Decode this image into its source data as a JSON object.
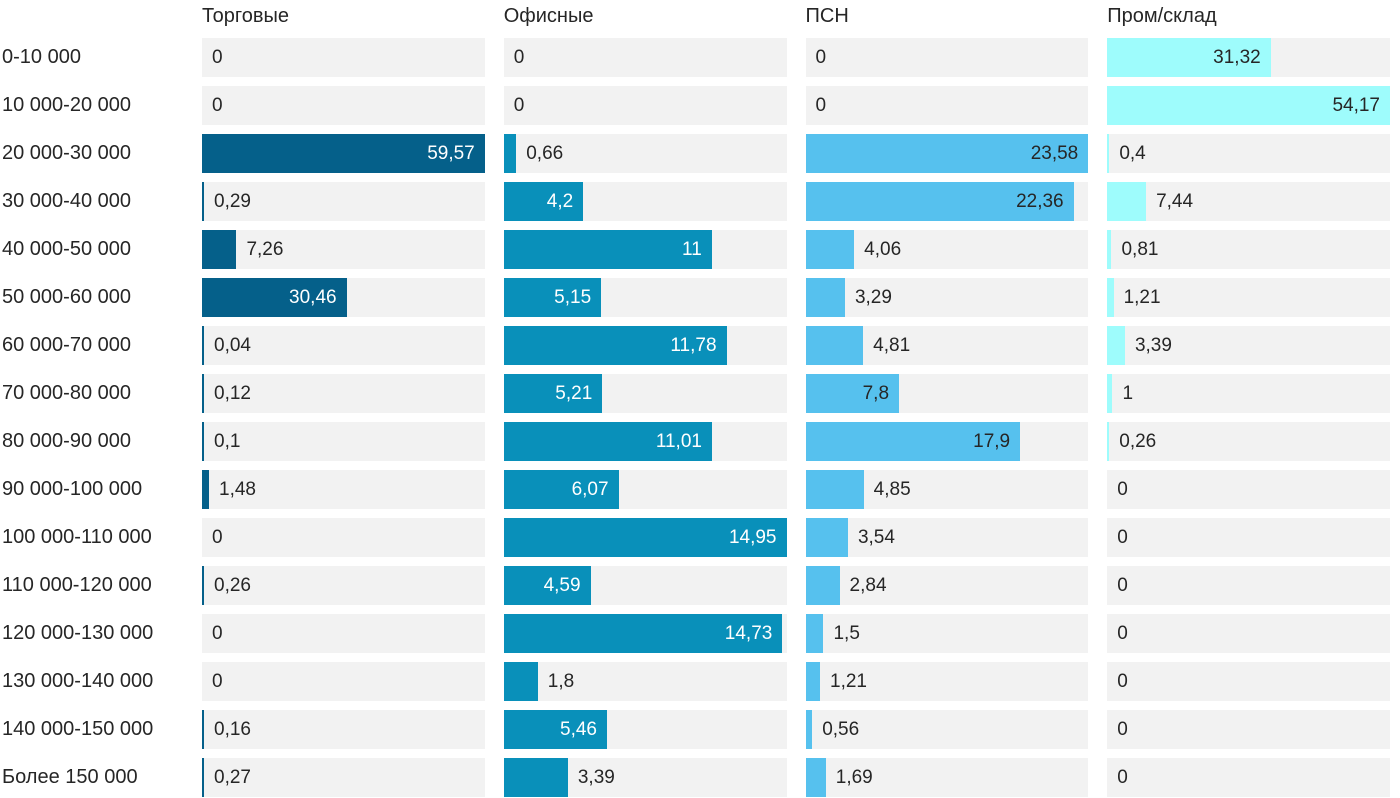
{
  "chart_data": {
    "type": "bar",
    "orientation": "horizontal",
    "title": "",
    "value_format": "comma-decimal",
    "grid": false,
    "legend_position": "column-headers-top",
    "scaling": "each-column-scaled-to-its-own-max",
    "column_max": [
      59.57,
      14.95,
      23.58,
      54.17
    ],
    "track_color": "#f2f2f2",
    "text_color": "#262626",
    "categories": [
      "0-10 000",
      "10 000-20 000",
      "20 000-30 000",
      "30 000-40 000",
      "40 000-50 000",
      "50 000-60 000",
      "60 000-70 000",
      "70 000-80 000",
      "80 000-90 000",
      "90 000-100 000",
      "100 000-110 000",
      "110 000-120 000",
      "120 000-130 000",
      "130 000-140 000",
      "140 000-150 000",
      "Более 150 000"
    ],
    "series": [
      {
        "name": "Торговые",
        "color": "#05608a",
        "label_inside_color": "#ffffff",
        "values": [
          0,
          0,
          59.57,
          0.29,
          7.26,
          30.46,
          0.04,
          0.12,
          0.1,
          1.48,
          0,
          0.26,
          0,
          0,
          0.16,
          0.27
        ],
        "labels": [
          "0",
          "0",
          "59,57",
          "0,29",
          "7,26",
          "30,46",
          "0,04",
          "0,12",
          "0,1",
          "1,48",
          "0",
          "0,26",
          "0",
          "0",
          "0,16",
          "0,27"
        ]
      },
      {
        "name": "Офисные",
        "color": "#0990ba",
        "label_inside_color": "#ffffff",
        "values": [
          0,
          0,
          0.66,
          4.2,
          11,
          5.15,
          11.78,
          5.21,
          11.01,
          6.07,
          14.95,
          4.59,
          14.73,
          1.8,
          5.46,
          3.39
        ],
        "labels": [
          "0",
          "0",
          "0,66",
          "4,2",
          "11",
          "5,15",
          "11,78",
          "5,21",
          "11,01",
          "6,07",
          "14,95",
          "4,59",
          "14,73",
          "1,8",
          "5,46",
          "3,39"
        ]
      },
      {
        "name": "ПСН",
        "color": "#56c1ee",
        "label_inside_color": "#262626",
        "values": [
          0,
          0,
          23.58,
          22.36,
          4.06,
          3.29,
          4.81,
          7.8,
          17.9,
          4.85,
          3.54,
          2.84,
          1.5,
          1.21,
          0.56,
          1.69
        ],
        "labels": [
          "0",
          "0",
          "23,58",
          "22,36",
          "4,06",
          "3,29",
          "4,81",
          "7,8",
          "17,9",
          "4,85",
          "3,54",
          "2,84",
          "1,5",
          "1,21",
          "0,56",
          "1,69"
        ]
      },
      {
        "name": "Пром/склад",
        "color": "#9efcfc",
        "label_inside_color": "#262626",
        "values": [
          31.32,
          54.17,
          0.4,
          7.44,
          0.81,
          1.21,
          3.39,
          1,
          0.26,
          0,
          0,
          0,
          0,
          0,
          0,
          0
        ],
        "labels": [
          "31,32",
          "54,17",
          "0,4",
          "7,44",
          "0,81",
          "1,21",
          "3,39",
          "1",
          "0,26",
          "0",
          "0",
          "0",
          "0",
          "0",
          "0",
          "0"
        ]
      }
    ]
  }
}
